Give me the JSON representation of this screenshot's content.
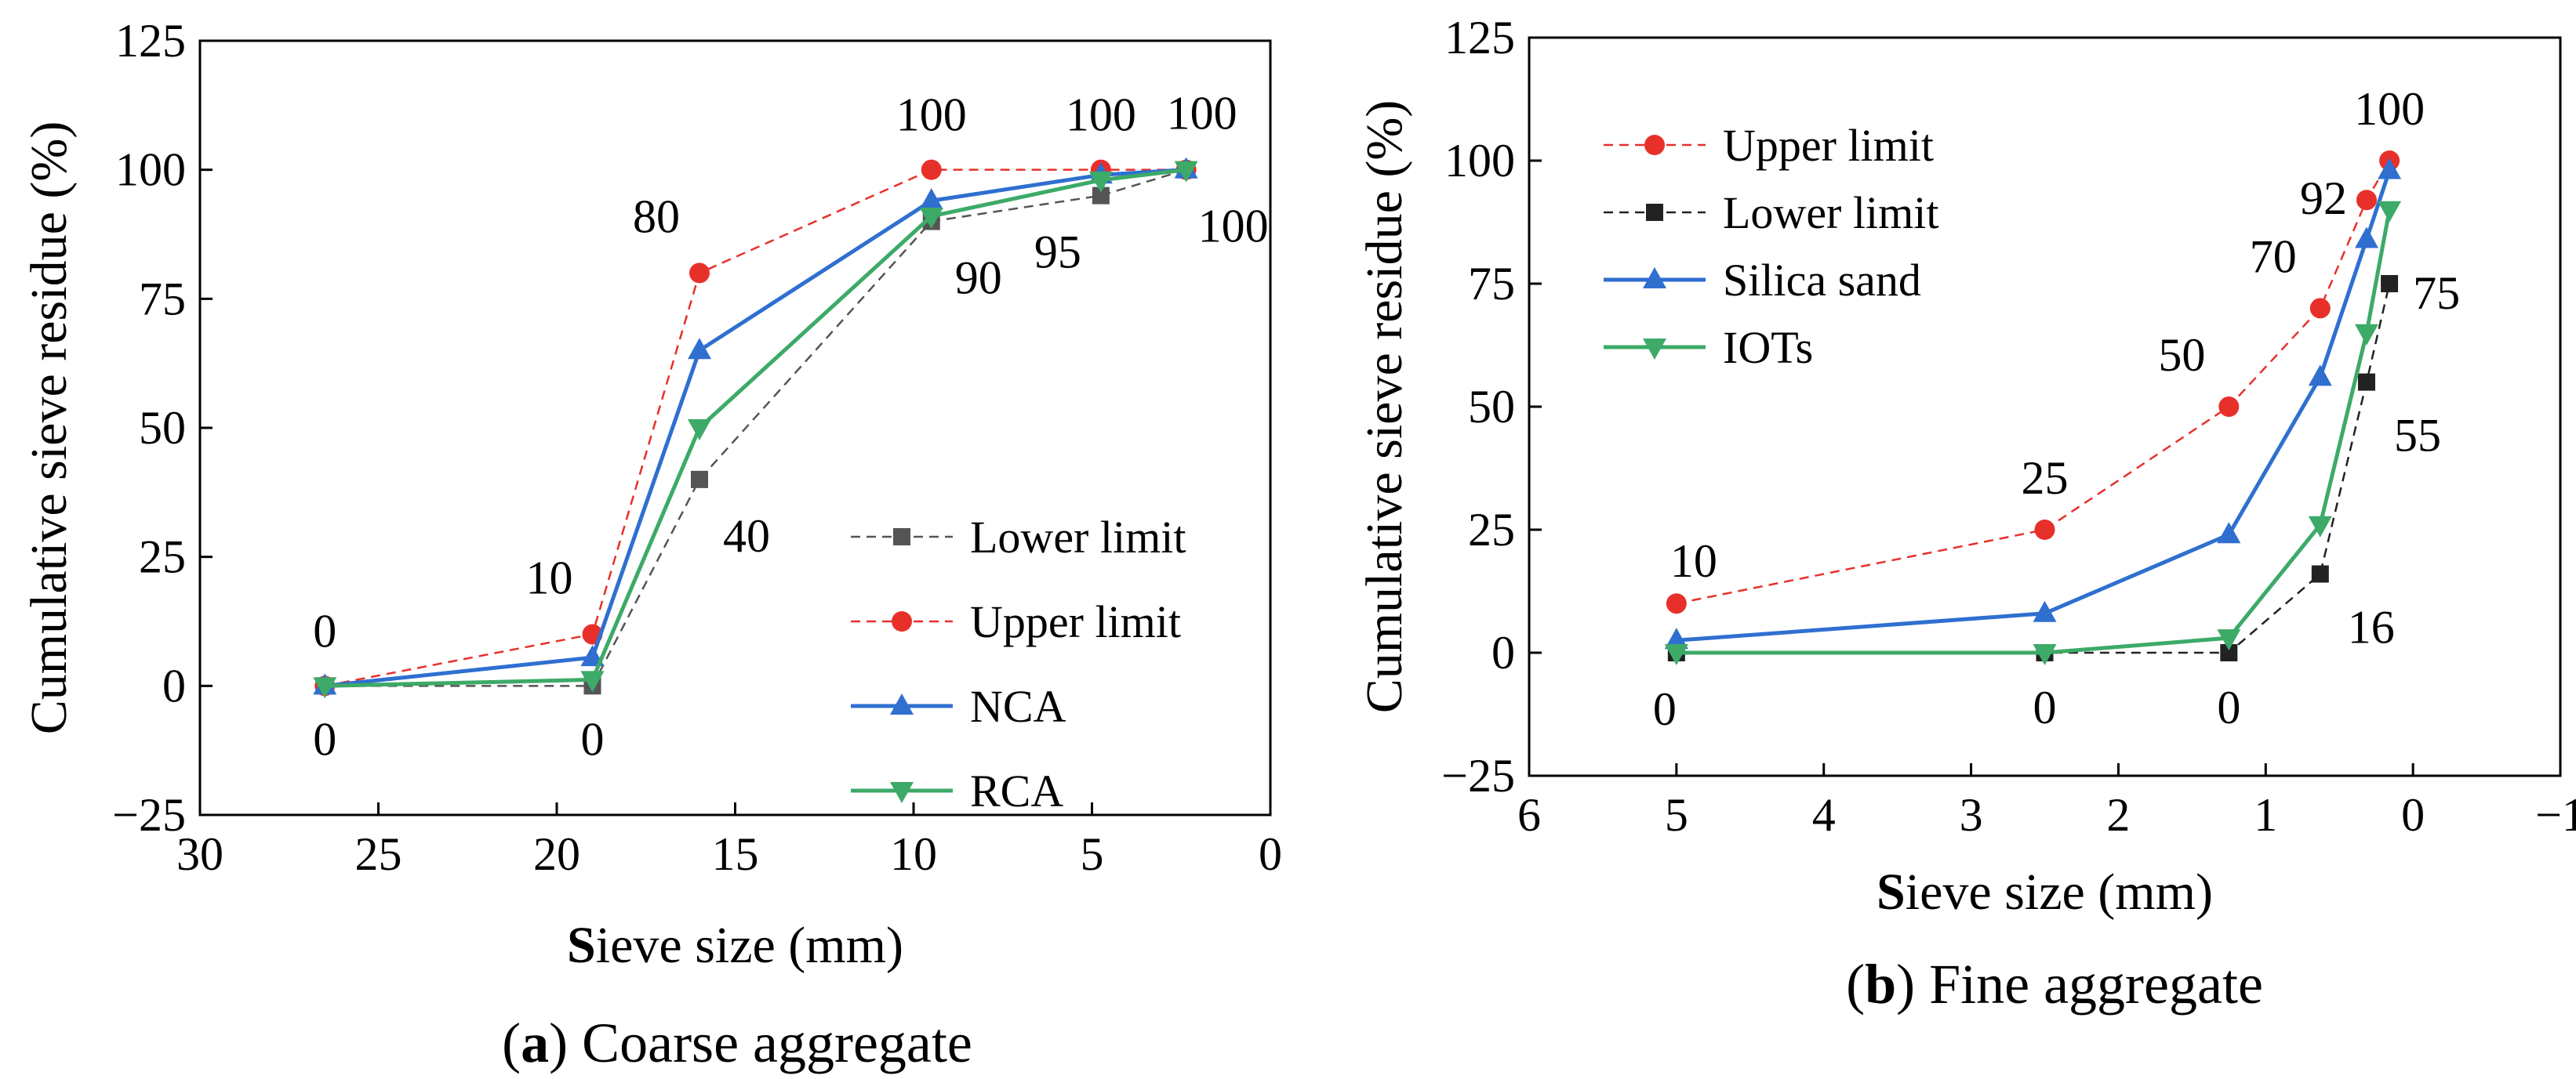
{
  "chart_data": [
    {
      "type": "line",
      "panel": "a",
      "caption": {
        "letter": "a",
        "text": "Coarse aggregate"
      },
      "xlabel": {
        "first": "S",
        "rest": "ieve size (mm)"
      },
      "ylabel": "Cumulative sieve residue (%)",
      "xlim": [
        30,
        0
      ],
      "ylim": [
        -25,
        125
      ],
      "xticks": [
        30,
        25,
        20,
        15,
        10,
        5,
        0
      ],
      "yticks": [
        -25,
        0,
        25,
        50,
        75,
        100,
        125
      ],
      "series": [
        {
          "name": "Lower limit",
          "color": "#555555",
          "dash": true,
          "marker": "square",
          "x": [
            26.5,
            19,
            16,
            9.5,
            4.75,
            2.36
          ],
          "y": [
            0,
            0,
            40,
            90,
            95,
            100
          ]
        },
        {
          "name": "Upper limit",
          "color": "#e8302b",
          "dash": true,
          "marker": "circle",
          "x": [
            26.5,
            19,
            16,
            9.5,
            4.75,
            2.36
          ],
          "y": [
            0,
            10,
            80,
            100,
            100,
            100
          ]
        },
        {
          "name": "NCA",
          "color": "#2f6fd0",
          "dash": false,
          "marker": "triangle-up",
          "x": [
            26.5,
            19,
            16,
            9.5,
            4.75,
            2.36
          ],
          "y": [
            0,
            5.5,
            65,
            94,
            99,
            100
          ]
        },
        {
          "name": "RCA",
          "color": "#3daa68",
          "dash": false,
          "marker": "triangle-down",
          "x": [
            26.5,
            19,
            16,
            9.5,
            4.75,
            2.36
          ],
          "y": [
            0,
            1.2,
            50,
            91,
            98,
            100
          ]
        }
      ],
      "legend_order": [
        0,
        1,
        2,
        3
      ],
      "legend_position": "lower-right",
      "annotations": [
        {
          "text": "0",
          "x": 26.5,
          "y": 0,
          "pos": "above"
        },
        {
          "text": "0",
          "x": 26.5,
          "y": 0,
          "pos": "below"
        },
        {
          "text": "10",
          "x": 19,
          "y": 10,
          "pos": "above-left"
        },
        {
          "text": "0",
          "x": 19,
          "y": 0,
          "pos": "below"
        },
        {
          "text": "80",
          "x": 16,
          "y": 80,
          "pos": "above-left"
        },
        {
          "text": "40",
          "x": 16,
          "y": 40,
          "pos": "below-right"
        },
        {
          "text": "100",
          "x": 9.5,
          "y": 100,
          "pos": "above"
        },
        {
          "text": "90",
          "x": 9.5,
          "y": 90,
          "pos": "below-right"
        },
        {
          "text": "100",
          "x": 4.75,
          "y": 100,
          "pos": "above"
        },
        {
          "text": "95",
          "x": 4.75,
          "y": 95,
          "pos": "below-left"
        },
        {
          "text": "100",
          "x": 2.36,
          "y": 100,
          "pos": "above-right"
        },
        {
          "text": "100",
          "x": 2.36,
          "y": 100,
          "pos": "below-right"
        }
      ]
    },
    {
      "type": "line",
      "panel": "b",
      "caption": {
        "letter": "b",
        "text": "Fine aggregate"
      },
      "xlabel": {
        "first": "S",
        "rest": "ieve size (mm)"
      },
      "ylabel": "Cumulative sieve residue (%)",
      "xlim": [
        6,
        -1
      ],
      "ylim": [
        -25,
        125
      ],
      "xticks": [
        6,
        5,
        4,
        3,
        2,
        1,
        0,
        -1
      ],
      "xtick_labels": [
        "6",
        "5",
        "4",
        "3",
        "2",
        "1",
        "0",
        "−1"
      ],
      "yticks": [
        -25,
        0,
        25,
        50,
        75,
        100,
        125
      ],
      "ytick_labels": [
        "−25",
        "0",
        "25",
        "50",
        "75",
        "100",
        "125"
      ],
      "series": [
        {
          "name": "Upper limit",
          "color": "#e8302b",
          "dash": true,
          "marker": "circle",
          "x": [
            5,
            2.5,
            1.25,
            0.63,
            0.315,
            0.16
          ],
          "y": [
            10,
            25,
            50,
            70,
            92,
            100
          ]
        },
        {
          "name": "Lower limit",
          "color": "#222222",
          "dash": true,
          "marker": "square",
          "x": [
            5,
            2.5,
            1.25,
            0.63,
            0.315,
            0.16
          ],
          "y": [
            0,
            0,
            0,
            16,
            55,
            75
          ]
        },
        {
          "name": "Silica sand",
          "color": "#2f6fd0",
          "dash": false,
          "marker": "triangle-up",
          "x": [
            5,
            2.5,
            1.25,
            0.63,
            0.315,
            0.16
          ],
          "y": [
            2.5,
            8,
            24,
            56,
            84,
            98
          ]
        },
        {
          "name": "IOTs",
          "color": "#3daa68",
          "dash": false,
          "marker": "triangle-down",
          "x": [
            5,
            2.5,
            1.25,
            0.63,
            0.315,
            0.16
          ],
          "y": [
            0,
            0,
            3,
            26,
            65,
            90
          ]
        }
      ],
      "legend_order": [
        0,
        1,
        2,
        3
      ],
      "legend_position": "upper-left",
      "annotations": [
        {
          "text": "10",
          "x": 5,
          "y": 10,
          "pos": "above-right"
        },
        {
          "text": "0",
          "x": 5,
          "y": 0,
          "pos": "below-left"
        },
        {
          "text": "25",
          "x": 2.5,
          "y": 25,
          "pos": "above"
        },
        {
          "text": "0",
          "x": 2.5,
          "y": 0,
          "pos": "below"
        },
        {
          "text": "50",
          "x": 1.25,
          "y": 50,
          "pos": "above-left"
        },
        {
          "text": "0",
          "x": 1.25,
          "y": 0,
          "pos": "below"
        },
        {
          "text": "70",
          "x": 0.63,
          "y": 70,
          "pos": "above-left"
        },
        {
          "text": "16",
          "x": 0.63,
          "y": 16,
          "pos": "below-right"
        },
        {
          "text": "92",
          "x": 0.315,
          "y": 92,
          "pos": "left"
        },
        {
          "text": "55",
          "x": 0.315,
          "y": 55,
          "pos": "below-right"
        },
        {
          "text": "100",
          "x": 0.16,
          "y": 100,
          "pos": "above"
        },
        {
          "text": "75",
          "x": 0.16,
          "y": 75,
          "pos": "right"
        }
      ]
    }
  ]
}
